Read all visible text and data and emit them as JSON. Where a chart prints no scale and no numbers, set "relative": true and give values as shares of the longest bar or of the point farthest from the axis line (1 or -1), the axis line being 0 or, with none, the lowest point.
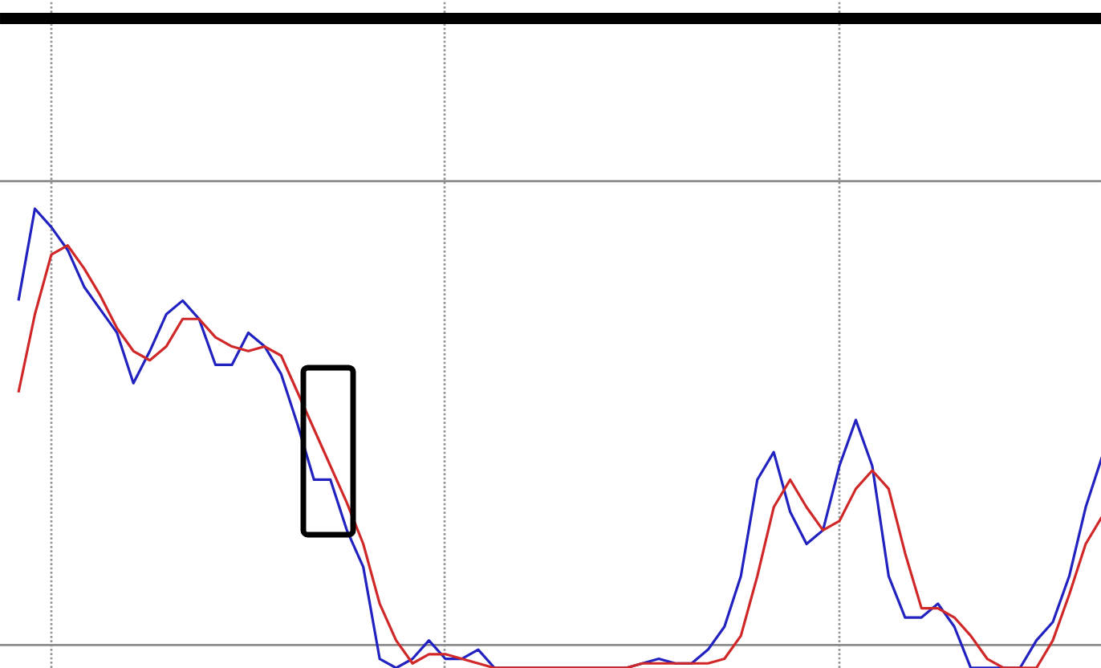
{
  "chart_data": {
    "type": "line",
    "relative": true,
    "categories": [
      null,
      null,
      null,
      null,
      null,
      null,
      null,
      null,
      null,
      null,
      null,
      null,
      null,
      null,
      null,
      null,
      null,
      null,
      null,
      null,
      null,
      null,
      null,
      null,
      null,
      null,
      null,
      null,
      null,
      null,
      null,
      null,
      null,
      null,
      null,
      null,
      null,
      null,
      null,
      null,
      null,
      null,
      null,
      null,
      null,
      null,
      null,
      null,
      null,
      null,
      null,
      null,
      null,
      null,
      null,
      null,
      null,
      null,
      null,
      null,
      null,
      null,
      null,
      null,
      null,
      null,
      null
    ],
    "series": [
      {
        "color": "#2222c0",
        "values": [
          0.8,
          1.0,
          0.96,
          0.91,
          0.83,
          0.78,
          0.73,
          0.62,
          0.69,
          0.77,
          0.8,
          0.76,
          0.66,
          0.66,
          0.73,
          0.7,
          0.64,
          0.53,
          0.41,
          0.41,
          0.3,
          0.22,
          0.02,
          0,
          0.02,
          0.06,
          0.02,
          0.02,
          0.04,
          0,
          0,
          0,
          0,
          0,
          0,
          0,
          0,
          0,
          0.01,
          0.02,
          0.01,
          0.01,
          0.04,
          0.09,
          0.2,
          0.41,
          0.47,
          0.34,
          0.27,
          0.3,
          0.44,
          0.54,
          0.44,
          0.2,
          0.11,
          0.11,
          0.14,
          0.09,
          0,
          0,
          0,
          0,
          0.06,
          0.1,
          0.2,
          0.35,
          0.46
        ]
      },
      {
        "color": "#d02828",
        "values": [
          0.6,
          0.77,
          0.9,
          0.92,
          0.87,
          0.81,
          0.74,
          0.69,
          0.67,
          0.7,
          0.76,
          0.76,
          0.72,
          0.7,
          0.69,
          0.7,
          0.68,
          0.6,
          0.52,
          0.44,
          0.36,
          0.27,
          0.14,
          0.06,
          0.01,
          0.03,
          0.03,
          0.02,
          0.01,
          0,
          0,
          0,
          0,
          0,
          0,
          0,
          0,
          0,
          0.01,
          0.01,
          0.01,
          0.01,
          0.01,
          0.02,
          0.07,
          0.2,
          0.35,
          0.41,
          0.35,
          0.3,
          0.32,
          0.39,
          0.43,
          0.39,
          0.25,
          0.13,
          0.13,
          0.11,
          0.07,
          0.02,
          0,
          0,
          0,
          0.06,
          0.16,
          0.27,
          0.33
        ]
      }
    ],
    "ref_lines": [
      {
        "axis": "y",
        "value": 1.06,
        "color": "#8c8c8c"
      },
      {
        "axis": "y",
        "value": 0.05,
        "color": "#8c8c8c"
      }
    ],
    "grid": "x"
  }
}
